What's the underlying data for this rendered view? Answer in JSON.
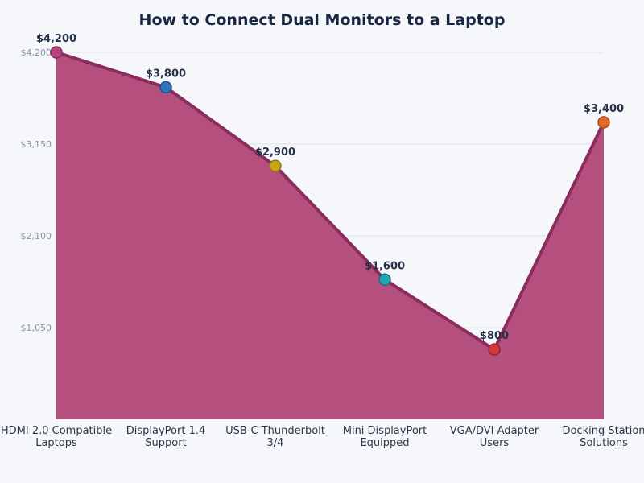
{
  "chart_data": {
    "type": "area",
    "title": "How to Connect Dual Monitors to a Laptop",
    "xlabel": "",
    "ylabel": "",
    "categories": [
      [
        "HDMI 2.0 Compatible",
        "Laptops"
      ],
      [
        "DisplayPort 1.4",
        "Support"
      ],
      [
        "USB-C Thunderbolt",
        "3/4"
      ],
      [
        "Mini DisplayPort",
        "Equipped"
      ],
      [
        "VGA/DVI Adapter",
        "Users"
      ],
      [
        "Docking Station",
        "Solutions"
      ]
    ],
    "values": [
      4200,
      3800,
      2900,
      1600,
      800,
      3400
    ],
    "value_labels": [
      "$4,200",
      "$3,800",
      "$2,900",
      "$1,600",
      "$800",
      "$3,400"
    ],
    "marker_colors": [
      "#b5467d",
      "#2f74c0",
      "#c9a618",
      "#22a6b3",
      "#d03a3a",
      "#e06a2c"
    ],
    "marker_edge_colors": [
      "#8a2c5e",
      "#1f4f8a",
      "#927a10",
      "#16717b",
      "#9a2222",
      "#a8491a"
    ],
    "fill_color": "#b5507e",
    "line_color": "#8a2c5e",
    "ylim": [
      0,
      4200
    ],
    "yticks": [
      1050,
      2100,
      3150,
      4200
    ],
    "ytick_labels": [
      "$1,050",
      "$2,100",
      "$3,150",
      "$4,200"
    ],
    "grid": true,
    "legend": null
  }
}
